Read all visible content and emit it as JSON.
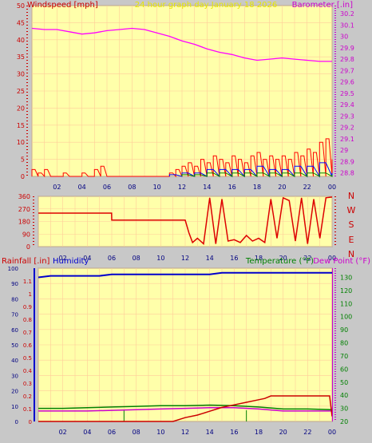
{
  "header": {
    "left_label": "Windspeed [mph]",
    "center_label": "24 hour graph day   January 18 2026",
    "right_label": "Barometer [.in]"
  },
  "colors": {
    "background": "#c8c8c8",
    "plot": "#ffffaa",
    "grid": "#ffcc99",
    "wind": "#ff0000",
    "wind_avg": "#0000ff",
    "wind_low": "#008000",
    "barometer": "#ff00ff",
    "direction": "#dd0000",
    "rain": "#cc0000",
    "humidity": "#0000cc",
    "temperature": "#008000",
    "dew_point": "#cc00cc",
    "label_red": "#cc0000",
    "label_blue": "#0000cc",
    "label_green": "#008000",
    "label_magenta": "#cc00cc",
    "title_yellow": "#e6e600"
  },
  "chart_data": [
    {
      "id": "wind_baro",
      "type": "line",
      "x_ticks": [
        "02",
        "04",
        "06",
        "08",
        "10",
        "12",
        "14",
        "16",
        "18",
        "20",
        "22",
        "00"
      ],
      "y_left": {
        "label": "Windspeed [mph]",
        "ticks": [
          "0",
          "5",
          "10",
          "15",
          "20",
          "25",
          "30",
          "35",
          "40",
          "45",
          "50"
        ],
        "ylim": [
          0,
          50
        ]
      },
      "y_right": {
        "label": "Barometer [.in]",
        "ticks": [
          "28.8",
          "28.9",
          "29",
          "29.1",
          "29.2",
          "29.3",
          "29.4",
          "29.5",
          "29.6",
          "29.7",
          "29.8",
          "29.9",
          "30",
          "30.1",
          "30.2"
        ],
        "ylim": [
          28.77,
          30.27
        ]
      },
      "grid": true,
      "series": [
        {
          "name": "Barometer [.in]",
          "axis": "right",
          "x": [
            0,
            1,
            2,
            3,
            4,
            5,
            6,
            7,
            8,
            9,
            10,
            11,
            12,
            13,
            14,
            15,
            16,
            17,
            18,
            19,
            20,
            21,
            22,
            23,
            24
          ],
          "values": [
            30.07,
            30.06,
            30.06,
            30.04,
            30.02,
            30.03,
            30.05,
            30.06,
            30.07,
            30.06,
            30.03,
            30.0,
            29.96,
            29.93,
            29.89,
            29.86,
            29.84,
            29.81,
            29.79,
            29.8,
            29.81,
            29.8,
            29.79,
            29.78,
            29.78
          ]
        },
        {
          "name": "Windspeed gust [mph]",
          "axis": "left",
          "x": [
            0,
            0.5,
            1,
            1.5,
            2,
            2.5,
            3,
            3.5,
            4,
            4.5,
            5,
            5.5,
            6,
            6.5,
            7,
            7.5,
            8,
            8.5,
            9,
            9.5,
            10,
            10.5,
            11,
            11.5,
            12,
            12.5,
            13,
            13.5,
            14,
            14.5,
            15,
            15.5,
            16,
            16.5,
            17,
            17.5,
            18,
            18.5,
            19,
            19.5,
            20,
            20.5,
            21,
            21.5,
            22,
            22.5,
            23,
            23.5,
            24
          ],
          "values": [
            2,
            1,
            2,
            0,
            0,
            1,
            0,
            0,
            1,
            0,
            2,
            3,
            0,
            0,
            0,
            0,
            0,
            0,
            0,
            0,
            0,
            0,
            1,
            2,
            3,
            4,
            3,
            5,
            4,
            6,
            5,
            4,
            6,
            5,
            4,
            6,
            7,
            5,
            6,
            5,
            6,
            5,
            7,
            6,
            8,
            7,
            10,
            11,
            5
          ]
        },
        {
          "name": "Windspeed average [mph]",
          "axis": "left",
          "x": [
            11,
            12,
            13,
            14,
            15,
            16,
            17,
            18,
            19,
            20,
            21,
            22,
            23,
            24
          ],
          "values": [
            0.5,
            1,
            1,
            2,
            2,
            2,
            2,
            3,
            2,
            2,
            3,
            3,
            4,
            1
          ]
        },
        {
          "name": "Windspeed low [mph]",
          "axis": "left",
          "x": [
            12,
            13,
            14,
            15,
            16,
            17,
            18,
            19,
            20,
            21,
            22,
            23,
            24
          ],
          "values": [
            0.5,
            0.5,
            1,
            1,
            1,
            1,
            1,
            1,
            1,
            1,
            1,
            1,
            0.5
          ]
        }
      ]
    },
    {
      "id": "direction",
      "type": "line",
      "x_ticks": [
        "02",
        "04",
        "06",
        "08",
        "10",
        "12",
        "14",
        "16",
        "18",
        "20",
        "22",
        "00"
      ],
      "y_left": {
        "ticks": [
          "0",
          "90",
          "180",
          "270",
          "360"
        ],
        "ylim": [
          0,
          360
        ]
      },
      "y_right": {
        "ticks": [
          "N",
          "E",
          "S",
          "W",
          "N"
        ]
      },
      "grid": true,
      "series": [
        {
          "name": "Wind direction",
          "x": [
            0,
            1,
            2,
            3,
            4,
            5,
            5.99,
            6,
            7,
            8,
            9,
            10,
            11,
            11.99,
            12,
            12.3,
            12.6,
            13,
            13.5,
            14,
            14.5,
            15,
            15.5,
            16,
            16.5,
            17,
            17.5,
            18,
            18.5,
            19,
            19.5,
            20,
            20.5,
            21,
            21.5,
            22,
            22.5,
            23,
            23.5,
            24
          ],
          "values": [
            240,
            240,
            240,
            240,
            240,
            240,
            240,
            190,
            190,
            190,
            190,
            190,
            190,
            190,
            190,
            100,
            30,
            60,
            20,
            350,
            20,
            340,
            40,
            50,
            30,
            80,
            40,
            60,
            30,
            340,
            60,
            350,
            330,
            40,
            350,
            20,
            340,
            60,
            350,
            355
          ]
        }
      ]
    },
    {
      "id": "rain_temp",
      "type": "line",
      "header_labels": {
        "rain": "Rainfall [.in]",
        "humidity": "Humidity",
        "temperature": "Temperature (°F)",
        "dew_point": "Dew Point (°F)"
      },
      "x_ticks": [
        "02",
        "04",
        "06",
        "08",
        "10",
        "12",
        "14",
        "16",
        "18",
        "20",
        "22",
        "00"
      ],
      "y_left": {
        "ticks": [
          "0",
          "10",
          "20",
          "30",
          "40",
          "50",
          "60",
          "70",
          "80",
          "90",
          "100"
        ],
        "ylim": [
          0,
          100
        ]
      },
      "y_left_inner": {
        "ticks": [
          "0",
          "0.1",
          "0.2",
          "0.3",
          "0.4",
          "0.5",
          "0.6",
          "0.7",
          "0.8",
          "0.9",
          "1",
          "1.1"
        ],
        "ylim": [
          0,
          1.2
        ]
      },
      "y_right": {
        "ticks": [
          "20",
          "30",
          "40",
          "50",
          "60",
          "70",
          "80",
          "90",
          "100",
          "110",
          "120",
          "130"
        ],
        "ylim": [
          20,
          137
        ]
      },
      "grid": true,
      "series": [
        {
          "name": "Humidity",
          "x": [
            0,
            1,
            2,
            3,
            4,
            5,
            6,
            7,
            8,
            9,
            10,
            11,
            12,
            13,
            14,
            15,
            16,
            17,
            18,
            19,
            20,
            21,
            22,
            23,
            24
          ],
          "values": [
            94,
            95,
            95,
            95,
            95,
            95,
            96,
            96,
            96,
            96,
            96,
            96,
            96,
            96,
            96,
            97,
            97,
            97,
            97,
            97,
            97,
            97,
            97,
            97,
            97
          ]
        },
        {
          "name": "Temperature (°F)",
          "x": [
            0,
            2,
            4,
            6,
            8,
            10,
            12,
            14,
            16,
            18,
            20,
            22,
            24
          ],
          "values": [
            30,
            30,
            30.5,
            31,
            31.5,
            32,
            32,
            32.5,
            32,
            31,
            29.5,
            29.5,
            29
          ]
        },
        {
          "name": "Dew Point (°F)",
          "x": [
            0,
            2,
            4,
            6,
            8,
            10,
            12,
            14,
            16,
            18,
            20,
            22,
            24
          ],
          "values": [
            28,
            28,
            28,
            28.5,
            29,
            29.5,
            30,
            30.5,
            30.5,
            29.5,
            28,
            28,
            28
          ]
        },
        {
          "name": "Rainfall [.in]",
          "x": [
            0,
            7,
            11,
            12,
            13,
            14,
            15,
            16,
            17,
            18,
            18.5,
            19,
            20,
            21,
            22,
            23,
            23.8,
            24
          ],
          "values": [
            0,
            0,
            0,
            0.03,
            0.05,
            0.08,
            0.11,
            0.13,
            0.15,
            0.17,
            0.18,
            0.2,
            0.2,
            0.2,
            0.2,
            0.2,
            0.2,
            0.04
          ]
        }
      ]
    }
  ]
}
